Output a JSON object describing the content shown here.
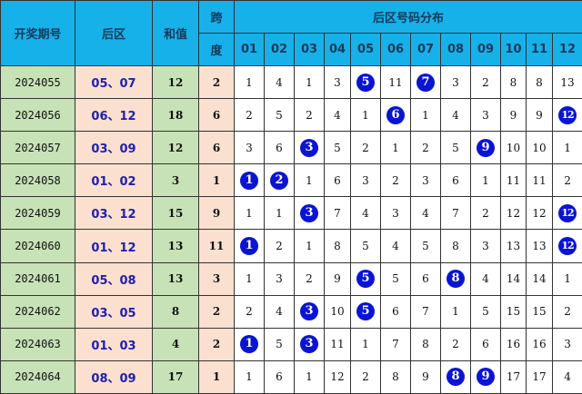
{
  "header": {
    "issue": "开奖期号",
    "back": "后区",
    "sum": "和值",
    "span_top": "跨",
    "span_bottom": "度",
    "dist_title": "后区号码分布",
    "columns": [
      "01",
      "02",
      "03",
      "04",
      "05",
      "06",
      "07",
      "08",
      "09",
      "10",
      "11",
      "12"
    ]
  },
  "colors": {
    "header": "#17b1ea",
    "green": "#c7e2b6",
    "peach": "#fbe0d0",
    "ball": "#0a14d2",
    "back_text": "#2020b0"
  },
  "rows": [
    {
      "issue": "2024055",
      "back": "05、07",
      "sum": "12",
      "span": "2",
      "dist": [
        "1",
        "4",
        "1",
        "3",
        "5",
        "11",
        "7",
        "3",
        "2",
        "8",
        "8",
        "13"
      ],
      "hits": [
        5,
        7
      ]
    },
    {
      "issue": "2024056",
      "back": "06、12",
      "sum": "18",
      "span": "6",
      "dist": [
        "2",
        "5",
        "2",
        "4",
        "1",
        "6",
        "1",
        "4",
        "3",
        "9",
        "9",
        "12"
      ],
      "hits": [
        6,
        12
      ]
    },
    {
      "issue": "2024057",
      "back": "03、09",
      "sum": "12",
      "span": "6",
      "dist": [
        "3",
        "6",
        "3",
        "5",
        "2",
        "1",
        "2",
        "5",
        "9",
        "10",
        "10",
        "1"
      ],
      "hits": [
        3,
        9
      ]
    },
    {
      "issue": "2024058",
      "back": "01、02",
      "sum": "3",
      "span": "1",
      "dist": [
        "1",
        "2",
        "1",
        "6",
        "3",
        "2",
        "3",
        "6",
        "1",
        "11",
        "11",
        "2"
      ],
      "hits": [
        1,
        2
      ]
    },
    {
      "issue": "2024059",
      "back": "03、12",
      "sum": "15",
      "span": "9",
      "dist": [
        "1",
        "1",
        "3",
        "7",
        "4",
        "3",
        "4",
        "7",
        "2",
        "12",
        "12",
        "12"
      ],
      "hits": [
        3,
        12
      ]
    },
    {
      "issue": "2024060",
      "back": "01、12",
      "sum": "13",
      "span": "11",
      "dist": [
        "1",
        "2",
        "1",
        "8",
        "5",
        "4",
        "5",
        "8",
        "3",
        "13",
        "13",
        "12"
      ],
      "hits": [
        1,
        12
      ]
    },
    {
      "issue": "2024061",
      "back": "05、08",
      "sum": "13",
      "span": "3",
      "dist": [
        "1",
        "3",
        "2",
        "9",
        "5",
        "5",
        "6",
        "8",
        "4",
        "14",
        "14",
        "1"
      ],
      "hits": [
        5,
        8
      ]
    },
    {
      "issue": "2024062",
      "back": "03、05",
      "sum": "8",
      "span": "2",
      "dist": [
        "2",
        "4",
        "3",
        "10",
        "5",
        "6",
        "7",
        "1",
        "5",
        "15",
        "15",
        "2"
      ],
      "hits": [
        3,
        5
      ]
    },
    {
      "issue": "2024063",
      "back": "01、03",
      "sum": "4",
      "span": "2",
      "dist": [
        "1",
        "5",
        "3",
        "11",
        "1",
        "7",
        "8",
        "2",
        "6",
        "16",
        "16",
        "3"
      ],
      "hits": [
        1,
        3
      ]
    },
    {
      "issue": "2024064",
      "back": "08、09",
      "sum": "17",
      "span": "1",
      "dist": [
        "1",
        "6",
        "1",
        "12",
        "2",
        "8",
        "9",
        "8",
        "9",
        "17",
        "17",
        "4"
      ],
      "hits": [
        8,
        9
      ]
    }
  ]
}
